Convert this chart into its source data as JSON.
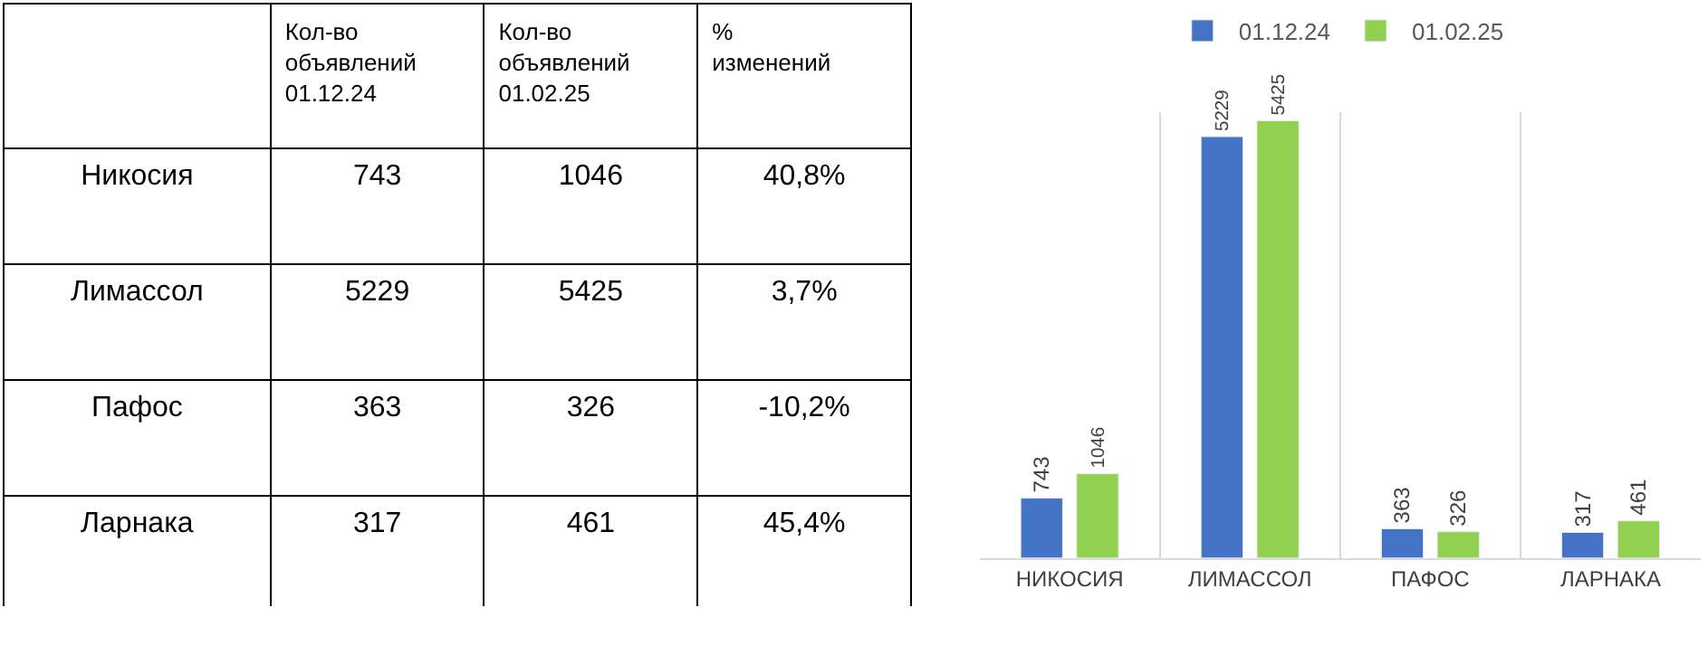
{
  "chart_data": [
    {
      "type": "other",
      "annotations": [
        "Кол-во объявлений 01.12.24",
        "Кол-во объявлений 01.02.25",
        "% изменений",
        "Никосия",
        "743",
        "1046",
        "40,8%",
        "Лимассол",
        "5229",
        "5425",
        "3,7%",
        "Пафос",
        "363",
        "326",
        "-10,2%",
        "Ларнака",
        "317",
        "461",
        "45,4%"
      ]
    },
    {
      "type": "bar",
      "categories": [
        "НИКОСИЯ",
        "ЛИМАССОЛ",
        "ПАФОС",
        "ЛАРНАКА"
      ],
      "series": [
        {
          "name": "01.12.24",
          "color": "#4472c4",
          "values": [
            743,
            5229,
            363,
            317
          ]
        },
        {
          "name": "01.02.25",
          "color": "#92d050",
          "values": [
            1046,
            5425,
            326,
            461
          ]
        }
      ],
      "data_labels": true,
      "legend": "top",
      "grid": "x"
    }
  ]
}
